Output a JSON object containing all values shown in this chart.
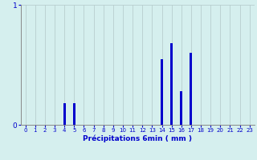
{
  "xlabel": "Précipitations 6min ( mm )",
  "hours": [
    0,
    1,
    2,
    3,
    4,
    5,
    6,
    7,
    8,
    9,
    10,
    11,
    12,
    13,
    14,
    15,
    16,
    17,
    18,
    19,
    20,
    21,
    22,
    23
  ],
  "values": [
    0,
    0,
    0,
    0,
    0.18,
    0.18,
    0,
    0,
    0,
    0,
    0,
    0,
    0,
    0,
    0.55,
    0.68,
    0.28,
    0.6,
    0,
    0,
    0,
    0,
    0,
    0
  ],
  "bar_color": "#0000cc",
  "bg_color": "#d5efee",
  "grid_color": "#b8cece",
  "axis_color": "#888888",
  "text_color": "#0000cc",
  "ylim": [
    0,
    1.0
  ],
  "yticks": [
    0,
    1
  ],
  "xlim": [
    -0.5,
    23.5
  ]
}
